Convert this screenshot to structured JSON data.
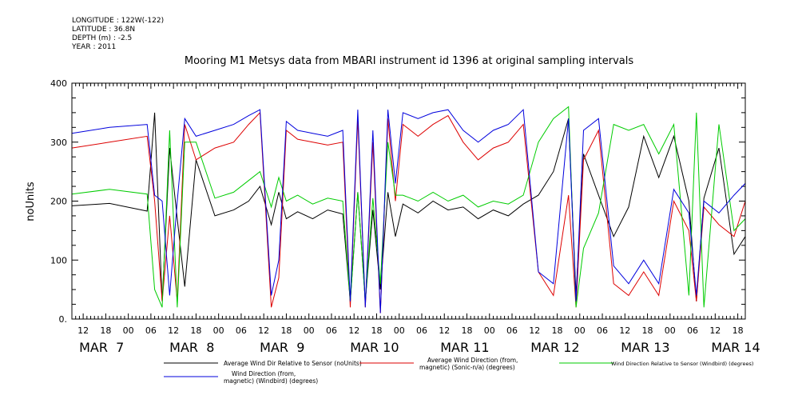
{
  "meta": {
    "longitude": "LONGITUDE : 122W(-122)",
    "latitude": "LATITUDE : 36.8N",
    "depth": "DEPTH (m) : -2.5",
    "year": "YEAR : 2011"
  },
  "chart_data": {
    "type": "line",
    "title": "Mooring M1 Metsys data from MBARI instrument id 1396 at original sampling intervals",
    "ylabel": "noUnits",
    "xlabel": "",
    "ylim": [
      0,
      400
    ],
    "yticks": [
      0,
      100,
      200,
      300,
      400
    ],
    "ytick_labels": [
      "0.",
      "100",
      "200",
      "300",
      "400"
    ],
    "xlim_hours": [
      0,
      179
    ],
    "x_unit": "hours from MAR 7 09:00, 2011",
    "hour_ticks": [
      {
        "x": 3,
        "label": "12"
      },
      {
        "x": 9,
        "label": "18"
      },
      {
        "x": 15,
        "label": "00"
      },
      {
        "x": 21,
        "label": "06"
      },
      {
        "x": 27,
        "label": "12"
      },
      {
        "x": 33,
        "label": "18"
      },
      {
        "x": 39,
        "label": "00"
      },
      {
        "x": 45,
        "label": "06"
      },
      {
        "x": 51,
        "label": "12"
      },
      {
        "x": 57,
        "label": "18"
      },
      {
        "x": 63,
        "label": "00"
      },
      {
        "x": 69,
        "label": "06"
      },
      {
        "x": 75,
        "label": "12"
      },
      {
        "x": 81,
        "label": "18"
      },
      {
        "x": 87,
        "label": "00"
      },
      {
        "x": 93,
        "label": "06"
      },
      {
        "x": 99,
        "label": "12"
      },
      {
        "x": 105,
        "label": "18"
      },
      {
        "x": 111,
        "label": "00"
      },
      {
        "x": 117,
        "label": "06"
      },
      {
        "x": 123,
        "label": "12"
      },
      {
        "x": 129,
        "label": "18"
      },
      {
        "x": 135,
        "label": "00"
      },
      {
        "x": 141,
        "label": "06"
      },
      {
        "x": 147,
        "label": "12"
      },
      {
        "x": 153,
        "label": "18"
      },
      {
        "x": 159,
        "label": "00"
      },
      {
        "x": 165,
        "label": "06"
      },
      {
        "x": 171,
        "label": "12"
      },
      {
        "x": 177,
        "label": "18"
      }
    ],
    "day_ticks": [
      {
        "x": 3,
        "label": "MAR  7"
      },
      {
        "x": 27,
        "label": "MAR  8"
      },
      {
        "x": 51,
        "label": "MAR  9"
      },
      {
        "x": 75,
        "label": "MAR 10"
      },
      {
        "x": 99,
        "label": "MAR 11"
      },
      {
        "x": 123,
        "label": "MAR 12"
      },
      {
        "x": 147,
        "label": "MAR 13"
      },
      {
        "x": 171,
        "label": "MAR 14"
      }
    ],
    "series": [
      {
        "name": "Average Wind Dir Relative to Sensor (noUnits)",
        "color": "#000000",
        "x": [
          0,
          10,
          20,
          22,
          24,
          26,
          28,
          30,
          33,
          38,
          43,
          47,
          50,
          53,
          55,
          57,
          60,
          64,
          68,
          72,
          74,
          76,
          78,
          80,
          82,
          84,
          86,
          88,
          92,
          96,
          100,
          104,
          108,
          112,
          116,
          120,
          124,
          128,
          132,
          134,
          136,
          140,
          144,
          148,
          152,
          156,
          160,
          164,
          166,
          168,
          172,
          176,
          179
        ],
        "y": [
          192,
          196,
          183,
          350,
          30,
          290,
          170,
          55,
          270,
          175,
          185,
          200,
          225,
          160,
          215,
          170,
          182,
          170,
          185,
          178,
          30,
          215,
          30,
          185,
          50,
          215,
          140,
          195,
          180,
          200,
          185,
          190,
          170,
          185,
          175,
          195,
          210,
          250,
          340,
          40,
          280,
          210,
          140,
          190,
          310,
          240,
          310,
          200,
          30,
          205,
          290,
          110,
          140
        ]
      },
      {
        "name": "Average Wind Direction (from, magnetic) (Sonic-n/a) (degrees)",
        "color": "#dd0000",
        "x": [
          0,
          10,
          20,
          22,
          24,
          26,
          28,
          30,
          33,
          38,
          43,
          47,
          50,
          53,
          55,
          57,
          60,
          64,
          68,
          72,
          74,
          76,
          78,
          80,
          82,
          84,
          86,
          88,
          92,
          96,
          100,
          104,
          108,
          112,
          116,
          120,
          124,
          128,
          132,
          134,
          136,
          140,
          144,
          148,
          152,
          156,
          160,
          164,
          166,
          168,
          172,
          176,
          179
        ],
        "y": [
          290,
          300,
          310,
          200,
          30,
          175,
          30,
          330,
          270,
          290,
          300,
          330,
          350,
          20,
          70,
          320,
          305,
          300,
          295,
          300,
          20,
          340,
          20,
          300,
          10,
          340,
          200,
          330,
          310,
          330,
          345,
          300,
          270,
          290,
          300,
          330,
          80,
          40,
          210,
          20,
          270,
          320,
          60,
          40,
          80,
          40,
          200,
          150,
          30,
          190,
          160,
          140,
          200
        ]
      },
      {
        "name": "Wind Direction Relative to Sensor (Windbird) (degrees)",
        "color": "#00cc00",
        "x": [
          0,
          10,
          20,
          22,
          24,
          26,
          28,
          30,
          33,
          38,
          43,
          47,
          50,
          53,
          55,
          57,
          60,
          64,
          68,
          72,
          74,
          76,
          78,
          80,
          82,
          84,
          86,
          88,
          92,
          96,
          100,
          104,
          108,
          112,
          116,
          120,
          124,
          128,
          132,
          134,
          136,
          140,
          144,
          148,
          152,
          156,
          160,
          164,
          166,
          168,
          172,
          176,
          179
        ],
        "y": [
          212,
          220,
          212,
          50,
          20,
          320,
          20,
          300,
          300,
          205,
          215,
          235,
          250,
          190,
          240,
          200,
          210,
          195,
          205,
          200,
          30,
          215,
          30,
          205,
          60,
          300,
          210,
          210,
          200,
          215,
          200,
          210,
          190,
          200,
          195,
          210,
          300,
          340,
          360,
          20,
          120,
          180,
          330,
          320,
          330,
          280,
          330,
          40,
          350,
          20,
          330,
          150,
          170
        ]
      },
      {
        "name": "Wind Direction (from, magnetic) (Windbird) (degrees)",
        "color": "#0000dd",
        "x": [
          0,
          10,
          20,
          22,
          24,
          26,
          28,
          30,
          33,
          38,
          43,
          47,
          50,
          53,
          55,
          57,
          60,
          64,
          68,
          72,
          74,
          76,
          78,
          80,
          82,
          84,
          86,
          88,
          92,
          96,
          100,
          104,
          108,
          112,
          116,
          120,
          124,
          128,
          132,
          134,
          136,
          140,
          144,
          148,
          152,
          156,
          160,
          164,
          166,
          168,
          172,
          176,
          179
        ],
        "y": [
          315,
          325,
          330,
          210,
          200,
          40,
          200,
          340,
          310,
          320,
          330,
          345,
          355,
          40,
          100,
          335,
          320,
          315,
          310,
          320,
          30,
          355,
          20,
          320,
          10,
          355,
          230,
          350,
          340,
          350,
          355,
          320,
          300,
          320,
          330,
          355,
          80,
          60,
          340,
          30,
          320,
          340,
          90,
          60,
          100,
          60,
          220,
          180,
          40,
          200,
          180,
          210,
          230
        ]
      }
    ],
    "legend": [
      {
        "label": "Average Wind Dir Relative to Sensor (noUnits)",
        "color": "#000000"
      },
      {
        "label1": "Average Wind Direction (from,",
        "label2": "magnetic) (Sonic-n/a) (degrees)",
        "color": "#dd0000"
      },
      {
        "label": "Wind Direction Relative to Sensor (Windbird) (degrees)",
        "color": "#00cc00"
      },
      {
        "label1": "Wind Direction (from,",
        "label2": "magnetic) (Windbird) (degrees)",
        "color": "#0000dd"
      }
    ]
  }
}
